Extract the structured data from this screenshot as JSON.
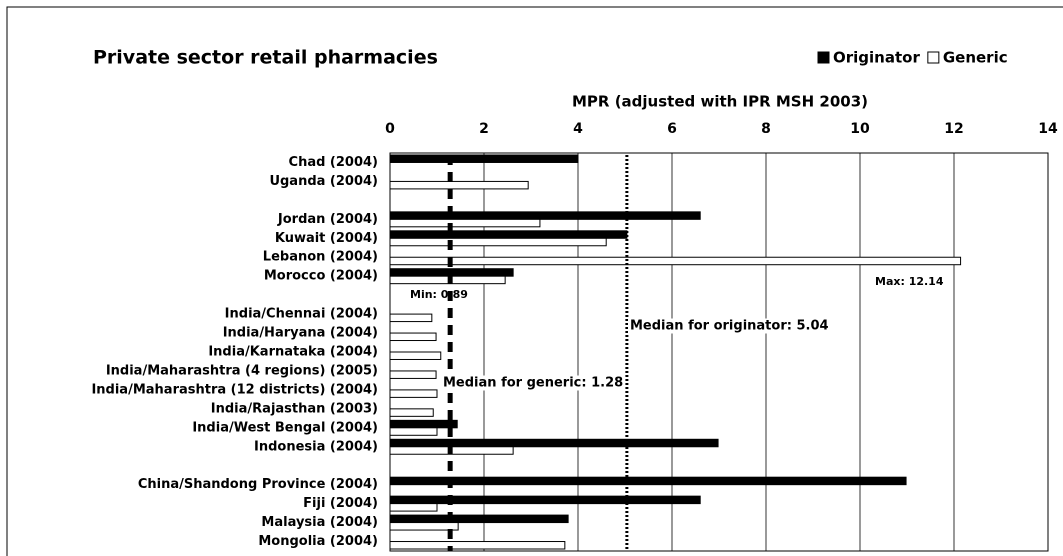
{
  "chart_data": {
    "type": "hbar",
    "title": "Private sector retail pharmacies",
    "x_label": "MPR (adjusted with IPR MSH 2003)",
    "categories": [
      "Chad (2004)",
      "Uganda (2004)",
      null,
      "Jordan (2004)",
      "Kuwait (2004)",
      "Lebanon (2004)",
      "Morocco (2004)",
      null,
      "India/Chennai (2004)",
      "India/Haryana (2004)",
      "India/Karnataka (2004)",
      "India/Maharashtra (4 regions) (2005)",
      "India/Maharashtra (12 districts) (2004)",
      "India/Rajasthan (2003)",
      "India/West Bengal (2004)",
      "Indonesia (2004)",
      null,
      "China/Shandong Province (2004)",
      "Fiji (2004)",
      "Malaysia (2004)",
      "Mongolia (2004)"
    ],
    "series": [
      {
        "name": "Originator",
        "color": "#000000",
        "values": [
          4.0,
          null,
          null,
          6.6,
          5.04,
          null,
          2.62,
          null,
          null,
          null,
          null,
          null,
          null,
          null,
          1.43,
          6.98,
          null,
          10.98,
          6.6,
          3.79,
          null
        ]
      },
      {
        "name": "Generic",
        "color": "#ffffff",
        "values": [
          null,
          2.94,
          null,
          3.19,
          4.6,
          12.14,
          2.45,
          null,
          0.89,
          0.98,
          1.08,
          0.98,
          1.0,
          0.92,
          1.0,
          2.62,
          null,
          null,
          1.0,
          1.45,
          3.72
        ]
      }
    ],
    "medians": [
      {
        "value": 5.04,
        "label": "Median for originator: 5.04"
      },
      {
        "value": 1.28,
        "label": "Median for generic: 1.28"
      }
    ],
    "annotations": [
      "Min: 0.89",
      "Max: 12.14"
    ],
    "xlim": [
      0,
      14
    ],
    "xticks": [
      0,
      2,
      4,
      6,
      8,
      10,
      12,
      14
    ],
    "grid": true,
    "legend": "top-right"
  }
}
